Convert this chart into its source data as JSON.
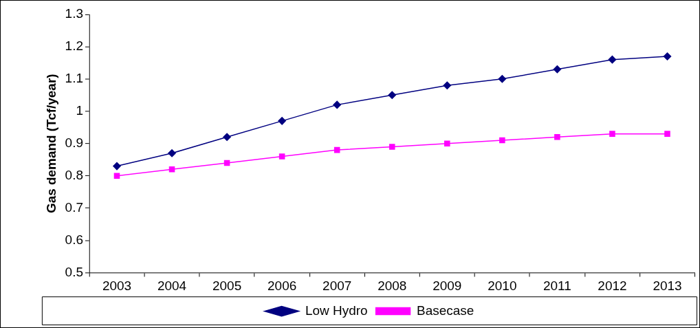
{
  "chart_data": {
    "type": "line",
    "ylabel": "Gas demand (Tcf/year)",
    "categories": [
      "2003",
      "2004",
      "2005",
      "2006",
      "2007",
      "2008",
      "2009",
      "2010",
      "2011",
      "2012",
      "2013"
    ],
    "series": [
      {
        "name": "Low Hydro",
        "color": "#000080",
        "marker": "diamond",
        "values": [
          0.83,
          0.87,
          0.92,
          0.97,
          1.02,
          1.05,
          1.08,
          1.1,
          1.13,
          1.16,
          1.17
        ]
      },
      {
        "name": "Basecase",
        "color": "#ff00ff",
        "marker": "square",
        "values": [
          0.8,
          0.82,
          0.84,
          0.86,
          0.88,
          0.89,
          0.9,
          0.91,
          0.92,
          0.93,
          0.93
        ]
      }
    ],
    "ylim": [
      0.5,
      1.3
    ],
    "yticks": [
      0.5,
      0.6,
      0.7,
      0.8,
      0.9,
      1,
      1.1,
      1.2,
      1.3
    ],
    "grid": false,
    "legend": "bottom",
    "line_style": "solid"
  }
}
